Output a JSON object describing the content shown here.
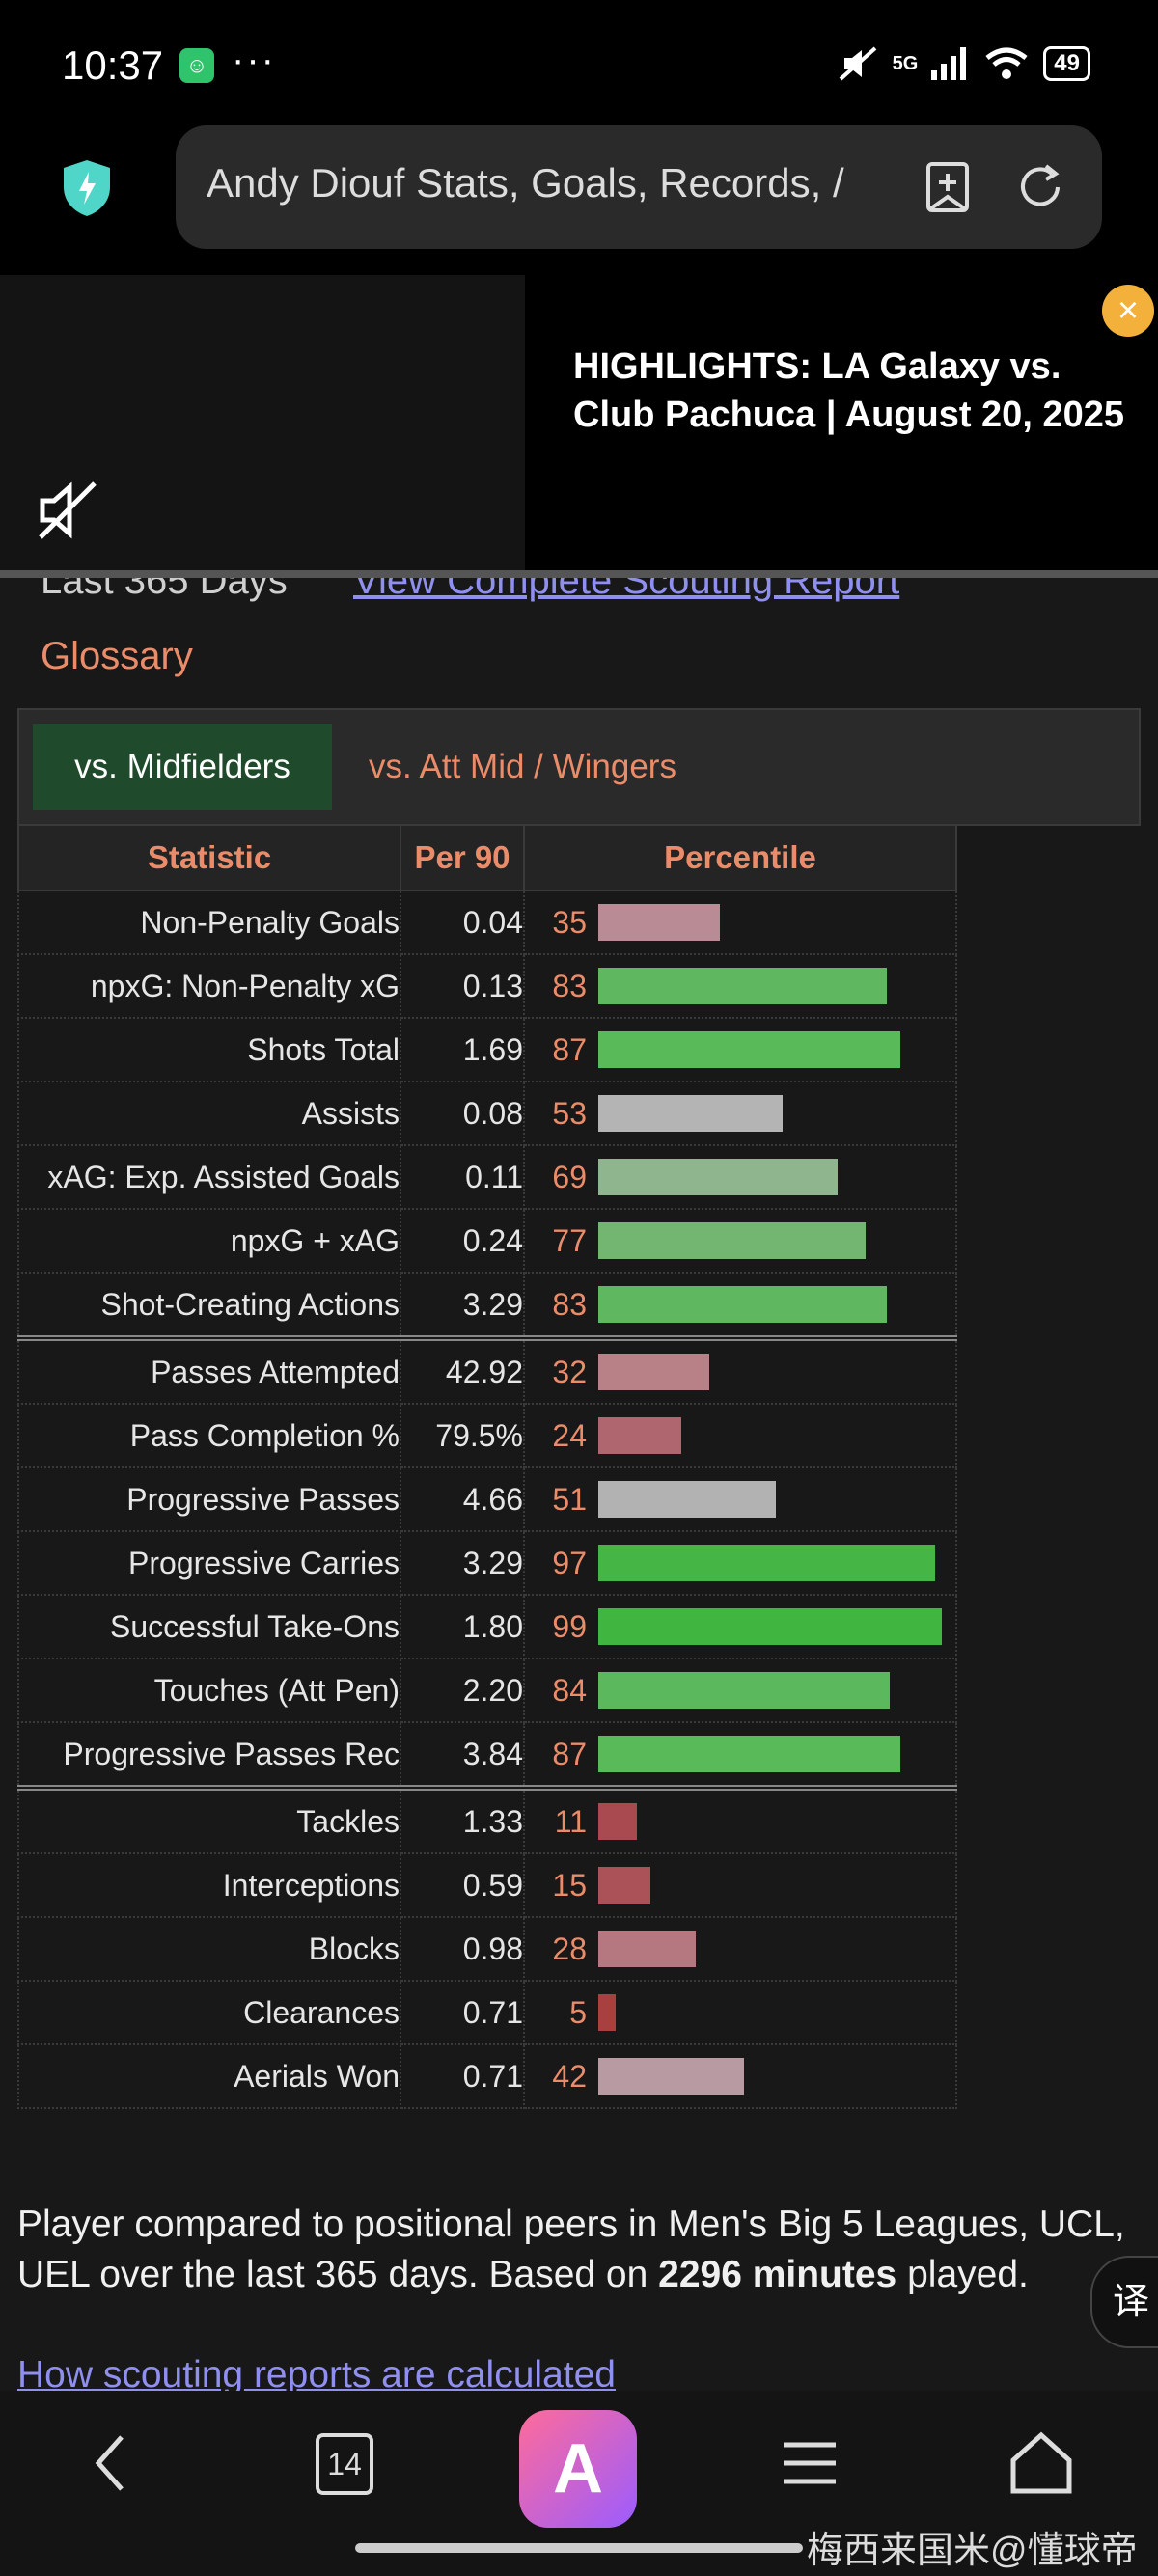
{
  "status_bar": {
    "time": "10:37",
    "dots": "···",
    "network": "5G",
    "battery": "49"
  },
  "browser": {
    "url_text": "Andy Diouf Stats, Goals, Records, /"
  },
  "video": {
    "title": "HIGHLIGHTS: LA Galaxy vs. Club Pachuca | August 20, 2025"
  },
  "page": {
    "scrolled_text": "Last 365 Days",
    "scrolled_link": "View Complete Scouting Report",
    "glossary": "Glossary",
    "tabs": [
      "vs. Midfielders",
      "vs. Att Mid / Wingers"
    ],
    "table": {
      "headers": [
        "Statistic",
        "Per 90",
        "Percentile"
      ],
      "rows": [
        {
          "stat": "Non-Penalty Goals",
          "per90": "0.04",
          "percentile": "35",
          "color": "#b88b95"
        },
        {
          "stat": "npxG: Non-Penalty xG",
          "per90": "0.13",
          "percentile": "83",
          "color": "#5fb85f"
        },
        {
          "stat": "Shots Total",
          "per90": "1.69",
          "percentile": "87",
          "color": "#58ba58"
        },
        {
          "stat": "Assists",
          "per90": "0.08",
          "percentile": "53",
          "color": "#b4b4b4"
        },
        {
          "stat": "xAG: Exp. Assisted Goals",
          "per90": "0.11",
          "percentile": "69",
          "color": "#8fb58f"
        },
        {
          "stat": "npxG + xAG",
          "per90": "0.24",
          "percentile": "77",
          "color": "#72b672"
        },
        {
          "stat": "Shot-Creating Actions",
          "per90": "3.29",
          "percentile": "83",
          "color": "#5fb85f"
        },
        {
          "stat": "Passes Attempted",
          "per90": "42.92",
          "percentile": "32",
          "color": "#b88187"
        },
        {
          "stat": "Pass Completion %",
          "per90": "79.5%",
          "percentile": "24",
          "color": "#b0666e"
        },
        {
          "stat": "Progressive Passes",
          "per90": "4.66",
          "percentile": "51",
          "color": "#b2b2b2"
        },
        {
          "stat": "Progressive Carries",
          "per90": "3.29",
          "percentile": "97",
          "color": "#45b645"
        },
        {
          "stat": "Successful Take-Ons",
          "per90": "1.80",
          "percentile": "99",
          "color": "#40b640"
        },
        {
          "stat": "Touches (Att Pen)",
          "per90": "2.20",
          "percentile": "84",
          "color": "#5cb85c"
        },
        {
          "stat": "Progressive Passes Rec",
          "per90": "3.84",
          "percentile": "87",
          "color": "#58ba58"
        },
        {
          "stat": "Tackles",
          "per90": "1.33",
          "percentile": "11",
          "color": "#a84a4f"
        },
        {
          "stat": "Interceptions",
          "per90": "0.59",
          "percentile": "15",
          "color": "#ab5258"
        },
        {
          "stat": "Blocks",
          "per90": "0.98",
          "percentile": "28",
          "color": "#b57880"
        },
        {
          "stat": "Clearances",
          "per90": "0.71",
          "percentile": "5",
          "color": "#a84040"
        },
        {
          "stat": "Aerials Won",
          "per90": "0.71",
          "percentile": "42",
          "color": "#b89aa2"
        }
      ]
    },
    "footnote_pre": "Player compared to positional peers in Men's Big 5 Leagues, UCL, UEL over the last 365 days. Based on ",
    "footnote_bold": "2296 minutes",
    "footnote_post": " played.",
    "footnote_link": "How scouting reports are calculated",
    "translate_label": "译"
  },
  "bottom_nav": {
    "tabs_count": "14",
    "app_letter": "A"
  },
  "watermark": "梅西来国米@懂球帝"
}
